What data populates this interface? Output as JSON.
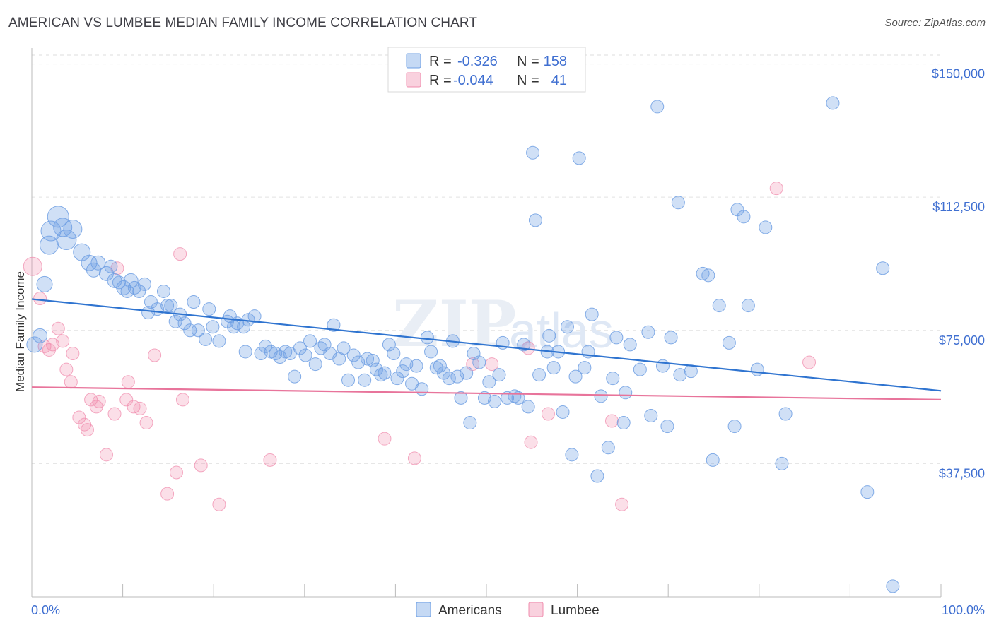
{
  "title": "AMERICAN VS LUMBEE MEDIAN FAMILY INCOME CORRELATION CHART",
  "source": "Source: ZipAtlas.com",
  "watermark": {
    "zip": "ZIP",
    "atlas": "atlas"
  },
  "colors": {
    "americans": "#6e9fe3",
    "lumbee": "#f08cad",
    "americans_line": "#2f74d0",
    "lumbee_line": "#e8749b",
    "axis_text": "#3f6fd1"
  },
  "legend": {
    "r_label": "R =",
    "n_label": "N =",
    "americans": {
      "r": "-0.326",
      "n": "158"
    },
    "lumbee": {
      "r": "-0.044",
      "n": "41"
    }
  },
  "bottom_legend": {
    "americans": "Americans",
    "lumbee": "Lumbee"
  },
  "chart_data": {
    "type": "scatter",
    "title": "AMERICAN VS LUMBEE MEDIAN FAMILY INCOME CORRELATION CHART",
    "xlabel": "",
    "ylabel": "Median Family Income",
    "xlim": [
      0,
      100
    ],
    "ylim": [
      0,
      152500
    ],
    "x_tick_labels": [
      "0.0%",
      "100.0%"
    ],
    "y_ticks": [
      37500,
      75000,
      112500,
      150000
    ],
    "y_tick_labels": [
      "$37,500",
      "$75,000",
      "$112,500",
      "$150,000"
    ],
    "grid": true,
    "legend_position": "top-center",
    "series": [
      {
        "name": "Americans",
        "trend": {
          "x": [
            0,
            100
          ],
          "y": [
            83800,
            58000
          ]
        },
        "points": [
          [
            0.3,
            71000,
            11
          ],
          [
            0.9,
            73500,
            10
          ],
          [
            1.4,
            88000,
            11
          ],
          [
            1.9,
            99000,
            13
          ],
          [
            2.1,
            103000,
            14
          ],
          [
            2.9,
            107000,
            15
          ],
          [
            3.4,
            104000,
            13
          ],
          [
            3.8,
            100500,
            14
          ],
          [
            4.5,
            103500,
            13
          ],
          [
            5.5,
            97000,
            12
          ],
          [
            6.3,
            94000,
            11
          ],
          [
            6.8,
            92000,
            10
          ],
          [
            7.3,
            94000,
            10
          ],
          [
            8.2,
            91000,
            10
          ],
          [
            8.7,
            93000,
            9
          ],
          [
            9.1,
            89000,
            10
          ],
          [
            9.6,
            88500,
            9
          ],
          [
            10.1,
            87000,
            10
          ],
          [
            10.5,
            86000,
            9
          ],
          [
            10.9,
            89000,
            10
          ],
          [
            11.3,
            87000,
            9
          ],
          [
            11.8,
            86000,
            9
          ],
          [
            12.4,
            88000,
            9
          ],
          [
            12.8,
            80000,
            9
          ],
          [
            13.1,
            83000,
            9
          ],
          [
            13.8,
            81000,
            9
          ],
          [
            14.5,
            86000,
            9
          ],
          [
            14.9,
            82000,
            9
          ],
          [
            15.3,
            82000,
            9
          ],
          [
            15.8,
            77500,
            9
          ],
          [
            16.3,
            79500,
            9
          ],
          [
            16.8,
            77000,
            9
          ],
          [
            17.4,
            75000,
            9
          ],
          [
            17.8,
            83000,
            9
          ],
          [
            18.3,
            75000,
            9
          ],
          [
            19.1,
            72500,
            9
          ],
          [
            19.5,
            81000,
            9
          ],
          [
            19.9,
            76000,
            9
          ],
          [
            20.6,
            72000,
            9
          ],
          [
            21.5,
            77500,
            9
          ],
          [
            21.8,
            79000,
            9
          ],
          [
            22.2,
            76000,
            9
          ],
          [
            22.6,
            77000,
            9
          ],
          [
            23.3,
            76000,
            9
          ],
          [
            23.8,
            78000,
            9
          ],
          [
            23.5,
            69000,
            9
          ],
          [
            24.5,
            79000,
            9
          ],
          [
            25.2,
            68500,
            9
          ],
          [
            25.7,
            70500,
            9
          ],
          [
            26.3,
            69000,
            9
          ],
          [
            26.8,
            68500,
            9
          ],
          [
            27.3,
            67500,
            9
          ],
          [
            27.9,
            69000,
            9
          ],
          [
            28.4,
            68500,
            9
          ],
          [
            28.9,
            62000,
            9
          ],
          [
            29.5,
            70000,
            9
          ],
          [
            30.1,
            68000,
            9
          ],
          [
            30.6,
            72000,
            9
          ],
          [
            31.2,
            65500,
            9
          ],
          [
            31.8,
            70000,
            9
          ],
          [
            32.2,
            71000,
            9
          ],
          [
            32.8,
            68500,
            9
          ],
          [
            33.2,
            76500,
            9
          ],
          [
            33.8,
            67000,
            9
          ],
          [
            34.3,
            70000,
            9
          ],
          [
            34.8,
            61000,
            9
          ],
          [
            35.4,
            68000,
            9
          ],
          [
            35.9,
            66000,
            9
          ],
          [
            36.6,
            61000,
            9
          ],
          [
            36.9,
            67000,
            9
          ],
          [
            37.5,
            66500,
            9
          ],
          [
            37.9,
            64000,
            9
          ],
          [
            38.4,
            62500,
            9
          ],
          [
            38.8,
            63000,
            9
          ],
          [
            39.3,
            71000,
            9
          ],
          [
            39.8,
            68500,
            9
          ],
          [
            40.2,
            61500,
            9
          ],
          [
            40.8,
            63500,
            9
          ],
          [
            41.2,
            65500,
            9
          ],
          [
            41.8,
            60000,
            9
          ],
          [
            42.3,
            65000,
            9
          ],
          [
            42.9,
            58500,
            9
          ],
          [
            43.5,
            73000,
            9
          ],
          [
            43.9,
            69000,
            9
          ],
          [
            44.5,
            64500,
            9
          ],
          [
            44.9,
            65000,
            9
          ],
          [
            45.3,
            63000,
            9
          ],
          [
            45.9,
            61500,
            9
          ],
          [
            46.3,
            72000,
            9
          ],
          [
            46.8,
            62000,
            9
          ],
          [
            47.2,
            56000,
            9
          ],
          [
            47.8,
            63000,
            9
          ],
          [
            48.2,
            49000,
            9
          ],
          [
            48.6,
            68500,
            9
          ],
          [
            49.2,
            66000,
            9
          ],
          [
            49.8,
            56000,
            9
          ],
          [
            50.3,
            60500,
            9
          ],
          [
            50.9,
            55000,
            9
          ],
          [
            51.4,
            62500,
            9
          ],
          [
            51.8,
            71500,
            9
          ],
          [
            52.3,
            56000,
            9
          ],
          [
            53.1,
            56500,
            9
          ],
          [
            53.5,
            56000,
            9
          ],
          [
            54.1,
            71000,
            9
          ],
          [
            54.6,
            53500,
            9
          ],
          [
            55.1,
            125000,
            9
          ],
          [
            55.4,
            106000,
            9
          ],
          [
            55.8,
            62500,
            9
          ],
          [
            56.7,
            69000,
            9
          ],
          [
            56.9,
            73500,
            9
          ],
          [
            57.4,
            64500,
            9
          ],
          [
            57.9,
            69000,
            9
          ],
          [
            58.4,
            52000,
            9
          ],
          [
            58.9,
            76000,
            9
          ],
          [
            59.4,
            40000,
            9
          ],
          [
            59.8,
            62000,
            9
          ],
          [
            60.2,
            123500,
            9
          ],
          [
            60.8,
            64500,
            9
          ],
          [
            61.2,
            69000,
            9
          ],
          [
            61.6,
            79500,
            9
          ],
          [
            62.2,
            34000,
            9
          ],
          [
            62.6,
            56500,
            9
          ],
          [
            63.4,
            42000,
            9
          ],
          [
            63.9,
            61500,
            9
          ],
          [
            64.3,
            73000,
            9
          ],
          [
            65.1,
            49000,
            9
          ],
          [
            65.3,
            57500,
            9
          ],
          [
            65.8,
            71000,
            9
          ],
          [
            66.9,
            64000,
            9
          ],
          [
            67.8,
            74500,
            9
          ],
          [
            68.1,
            51000,
            9
          ],
          [
            68.8,
            138000,
            9
          ],
          [
            69.4,
            65000,
            9
          ],
          [
            69.9,
            48000,
            9
          ],
          [
            70.3,
            73000,
            9
          ],
          [
            71.1,
            111000,
            9
          ],
          [
            71.3,
            62500,
            9
          ],
          [
            72.5,
            63500,
            9
          ],
          [
            73.8,
            91000,
            9
          ],
          [
            74.4,
            90500,
            9
          ],
          [
            74.9,
            38500,
            9
          ],
          [
            75.6,
            82000,
            9
          ],
          [
            76.7,
            71500,
            9
          ],
          [
            77.3,
            48000,
            9
          ],
          [
            77.6,
            109000,
            9
          ],
          [
            78.3,
            107000,
            9
          ],
          [
            78.8,
            82000,
            9
          ],
          [
            79.8,
            64000,
            9
          ],
          [
            80.7,
            104000,
            9
          ],
          [
            82.5,
            37500,
            9
          ],
          [
            82.9,
            51500,
            9
          ],
          [
            88.1,
            139000,
            9
          ],
          [
            91.9,
            29500,
            9
          ],
          [
            93.6,
            92500,
            9
          ],
          [
            94.7,
            3000,
            9
          ]
        ]
      },
      {
        "name": "Lumbee",
        "trend": {
          "x": [
            0,
            100
          ],
          "y": [
            59000,
            55500
          ]
        },
        "points": [
          [
            0.1,
            93000,
            13
          ],
          [
            0.9,
            84000,
            9
          ],
          [
            1.4,
            70500,
            9
          ],
          [
            1.9,
            69500,
            9
          ],
          [
            2.3,
            71000,
            9
          ],
          [
            2.9,
            75500,
            9
          ],
          [
            3.4,
            72000,
            9
          ],
          [
            3.8,
            64000,
            9
          ],
          [
            4.3,
            60500,
            9
          ],
          [
            4.5,
            68500,
            9
          ],
          [
            5.2,
            50500,
            9
          ],
          [
            5.8,
            48500,
            9
          ],
          [
            6.1,
            47000,
            9
          ],
          [
            6.5,
            55500,
            9
          ],
          [
            7.1,
            53500,
            9
          ],
          [
            7.4,
            55000,
            9
          ],
          [
            8.2,
            40000,
            9
          ],
          [
            9.1,
            51500,
            9
          ],
          [
            9.4,
            92500,
            9
          ],
          [
            10.6,
            60500,
            9
          ],
          [
            10.4,
            55500,
            9
          ],
          [
            11.2,
            53500,
            9
          ],
          [
            11.9,
            53000,
            9
          ],
          [
            12.6,
            49000,
            9
          ],
          [
            13.5,
            68000,
            9
          ],
          [
            14.9,
            29000,
            9
          ],
          [
            15.9,
            35000,
            9
          ],
          [
            16.3,
            96500,
            9
          ],
          [
            16.6,
            55500,
            9
          ],
          [
            18.6,
            37000,
            9
          ],
          [
            20.6,
            26000,
            9
          ],
          [
            26.2,
            38500,
            9
          ],
          [
            38.8,
            44500,
            9
          ],
          [
            42.1,
            39000,
            9
          ],
          [
            48.5,
            65500,
            9
          ],
          [
            50.6,
            65500,
            9
          ],
          [
            54.6,
            70000,
            9
          ],
          [
            54.9,
            43500,
            9
          ],
          [
            56.8,
            51500,
            9
          ],
          [
            63.8,
            49500,
            9
          ],
          [
            64.9,
            26000,
            9
          ],
          [
            81.9,
            115000,
            9
          ],
          [
            85.5,
            66000,
            9
          ]
        ]
      }
    ]
  }
}
